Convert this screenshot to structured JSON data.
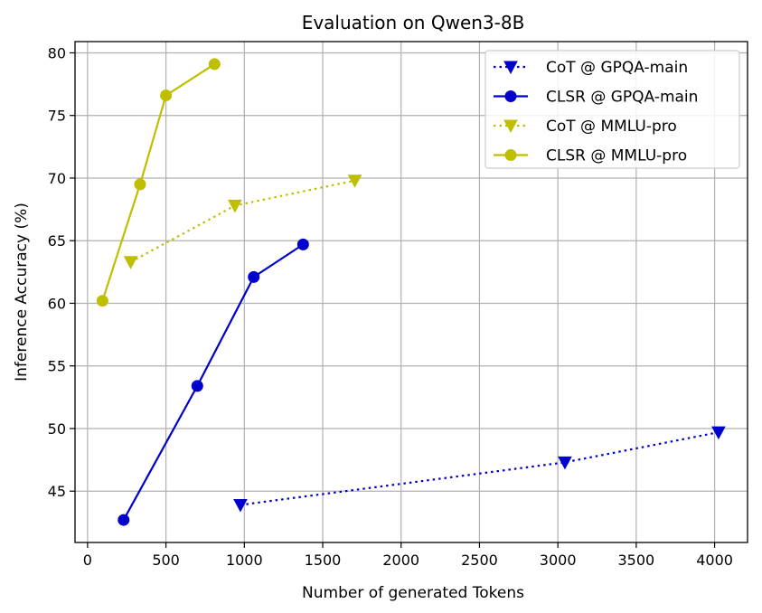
{
  "chart_data": {
    "type": "line",
    "title": "Evaluation on Qwen3-8B",
    "xlabel": "Number of generated Tokens",
    "ylabel": "Inference Accuracy (%)",
    "xlim": [
      -80,
      4210
    ],
    "ylim": [
      40.9,
      80.9
    ],
    "xticks": [
      0,
      500,
      1000,
      1500,
      2000,
      2500,
      3000,
      3500,
      4000
    ],
    "yticks": [
      45,
      50,
      55,
      60,
      65,
      70,
      75,
      80
    ],
    "grid": true,
    "legend_position": "top-right",
    "series": [
      {
        "name": "CoT @ GPQA-main",
        "color": "#0000cc",
        "line_style": "dotted",
        "marker": "triangle-down",
        "x": [
          975,
          3045,
          4025
        ],
        "y": [
          43.9,
          47.3,
          49.7
        ]
      },
      {
        "name": "CLSR @ GPQA-main",
        "color": "#0000cc",
        "line_style": "solid",
        "marker": "circle",
        "x": [
          230,
          700,
          1060,
          1375
        ],
        "y": [
          42.7,
          53.4,
          62.1,
          64.7
        ]
      },
      {
        "name": "CoT @ MMLU-pro",
        "color": "#bfbf00",
        "line_style": "dotted",
        "marker": "triangle-down",
        "x": [
          275,
          940,
          1705
        ],
        "y": [
          63.3,
          67.8,
          69.8
        ]
      },
      {
        "name": "CLSR @ MMLU-pro",
        "color": "#bfbf00",
        "line_style": "solid",
        "marker": "circle",
        "x": [
          95,
          335,
          500,
          810
        ],
        "y": [
          60.2,
          69.5,
          76.6,
          79.1
        ]
      }
    ]
  }
}
